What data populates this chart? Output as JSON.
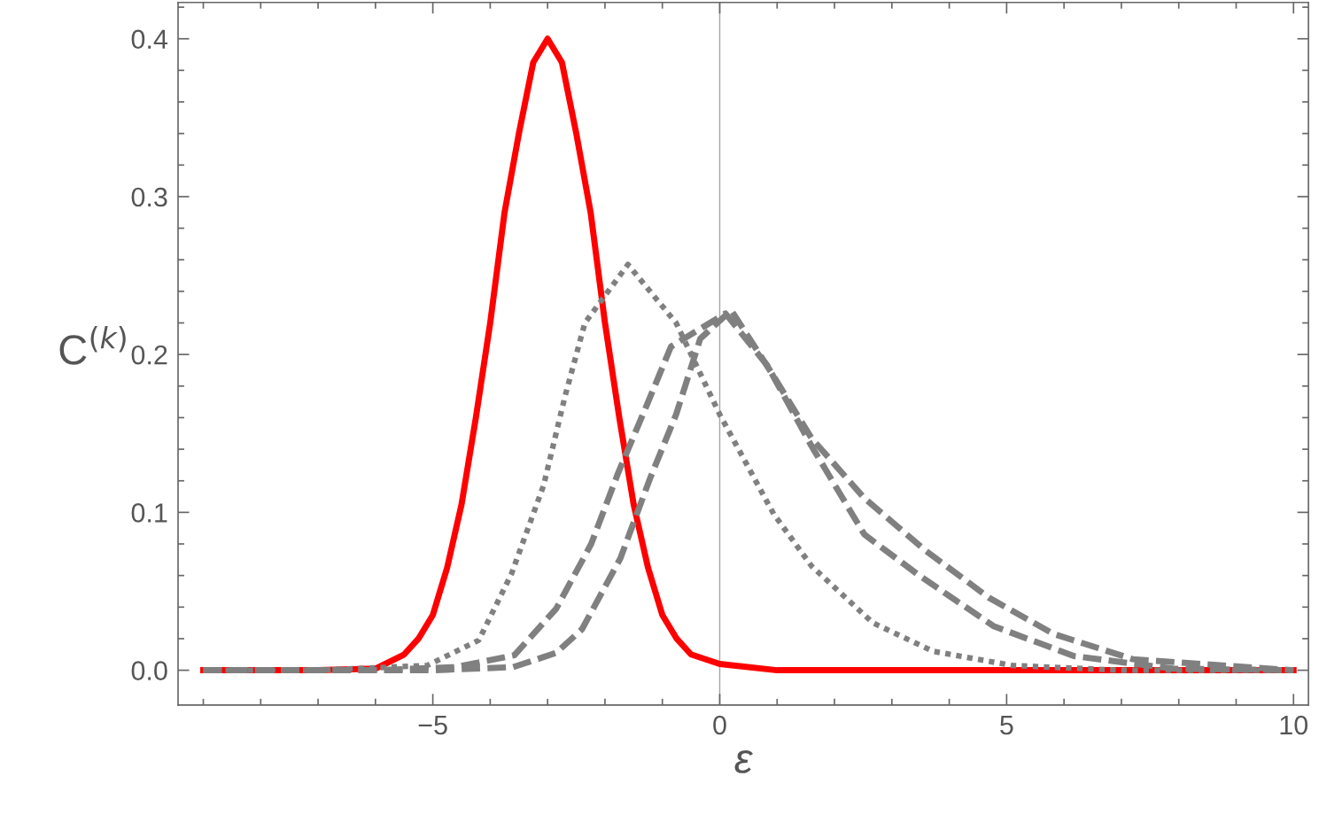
{
  "chart_data": {
    "type": "line",
    "xlabel": "ε",
    "ylabel": "C$^{(k)}$",
    "xlim": [
      -9.44,
      10.26
    ],
    "ylim": [
      -0.022,
      0.423
    ],
    "xticks": [
      {
        "value": -9,
        "label": null
      },
      {
        "value": -8,
        "label": null
      },
      {
        "value": -7,
        "label": null
      },
      {
        "value": -6,
        "label": null
      },
      {
        "value": -5,
        "label": "−5"
      },
      {
        "value": -4,
        "label": null
      },
      {
        "value": -3,
        "label": null
      },
      {
        "value": -2,
        "label": null
      },
      {
        "value": -1,
        "label": null
      },
      0,
      {
        "value": 1,
        "label": null
      },
      {
        "value": 2,
        "label": null
      },
      {
        "value": 3,
        "label": null
      },
      {
        "value": 4,
        "label": null
      },
      5,
      {
        "value": 6,
        "label": null
      },
      {
        "value": 7,
        "label": null
      },
      {
        "value": 8,
        "label": null
      },
      {
        "value": 9,
        "label": null
      },
      10
    ],
    "yticks": [
      {
        "value": 0,
        "label": "0.0"
      },
      {
        "value": 0.02,
        "label": null
      },
      {
        "value": 0.04,
        "label": null
      },
      {
        "value": 0.06,
        "label": null
      },
      {
        "value": 0.08,
        "label": null
      },
      0.1,
      {
        "value": 0.12,
        "label": null
      },
      {
        "value": 0.14,
        "label": null
      },
      {
        "value": 0.16,
        "label": null
      },
      {
        "value": 0.18,
        "label": null
      },
      0.2,
      {
        "value": 0.22,
        "label": null
      },
      {
        "value": 0.24,
        "label": null
      },
      {
        "value": 0.26,
        "label": null
      },
      {
        "value": 0.28,
        "label": null
      },
      0.3,
      {
        "value": 0.32,
        "label": null
      },
      {
        "value": 0.34,
        "label": null
      },
      {
        "value": 0.36,
        "label": null
      },
      {
        "value": 0.38,
        "label": null
      },
      0.4,
      {
        "value": 0.42,
        "label": null
      }
    ],
    "grid": false,
    "legend": false,
    "ref_lines": [
      {
        "axis": "x",
        "value": 0,
        "color": "#a6a6a6"
      }
    ],
    "series": [
      {
        "color": "#808080",
        "line_style": "dotted",
        "x": [
          -9,
          -7,
          -5.1,
          -4.2,
          -3.63,
          -3.07,
          -2.7,
          -2.35,
          -1.6,
          -0.76,
          0,
          0.94,
          1.6,
          2.67,
          3.72,
          5.1,
          7,
          10
        ],
        "values": [
          0,
          0,
          0.003,
          0.019,
          0.061,
          0.117,
          0.173,
          0.22,
          0.257,
          0.22,
          0.162,
          0.099,
          0.066,
          0.03,
          0.012,
          0.003,
          0,
          0
        ]
      },
      {
        "color": "#808080",
        "line_style": "dashed",
        "x": [
          -9,
          -6,
          -4.6,
          -3.58,
          -2.85,
          -2.24,
          -1.77,
          -1.27,
          -0.85,
          0.1,
          0.83,
          1.6,
          2.52,
          3.44,
          4.77,
          6.17,
          7.9,
          10
        ],
        "values": [
          0,
          0,
          0.002,
          0.0095,
          0.039,
          0.08,
          0.125,
          0.168,
          0.205,
          0.226,
          0.193,
          0.142,
          0.086,
          0.061,
          0.028,
          0.009,
          0.001,
          0
        ]
      },
      {
        "color": "#808080",
        "line_style": "dashed",
        "x": [
          -9,
          -5,
          -3.6,
          -2.85,
          -2.4,
          -1.73,
          -1.22,
          -0.76,
          -0.34,
          0.2,
          0.91,
          1.6,
          2.52,
          3.58,
          4.69,
          5.82,
          7.2,
          10
        ],
        "values": [
          0,
          0,
          0.002,
          0.011,
          0.026,
          0.071,
          0.121,
          0.162,
          0.21,
          0.228,
          0.188,
          0.147,
          0.109,
          0.076,
          0.046,
          0.023,
          0.007,
          0
        ]
      },
      {
        "color": "#ff0000",
        "line_style": "solid",
        "x": [
          -9,
          -7,
          -6,
          -5.5,
          -5.25,
          -5,
          -4.75,
          -4.5,
          -4.25,
          -4,
          -3.75,
          -3.5,
          -3.25,
          -3,
          -2.75,
          -2.5,
          -2.25,
          -2,
          -1.75,
          -1.5,
          -1.25,
          -1,
          -0.75,
          -0.5,
          0,
          1,
          10
        ],
        "values": [
          0,
          0,
          0.001,
          0.01,
          0.02,
          0.035,
          0.065,
          0.105,
          0.16,
          0.22,
          0.29,
          0.34,
          0.385,
          0.4,
          0.385,
          0.34,
          0.29,
          0.22,
          0.16,
          0.105,
          0.065,
          0.035,
          0.02,
          0.01,
          0.004,
          0,
          0
        ]
      }
    ]
  }
}
